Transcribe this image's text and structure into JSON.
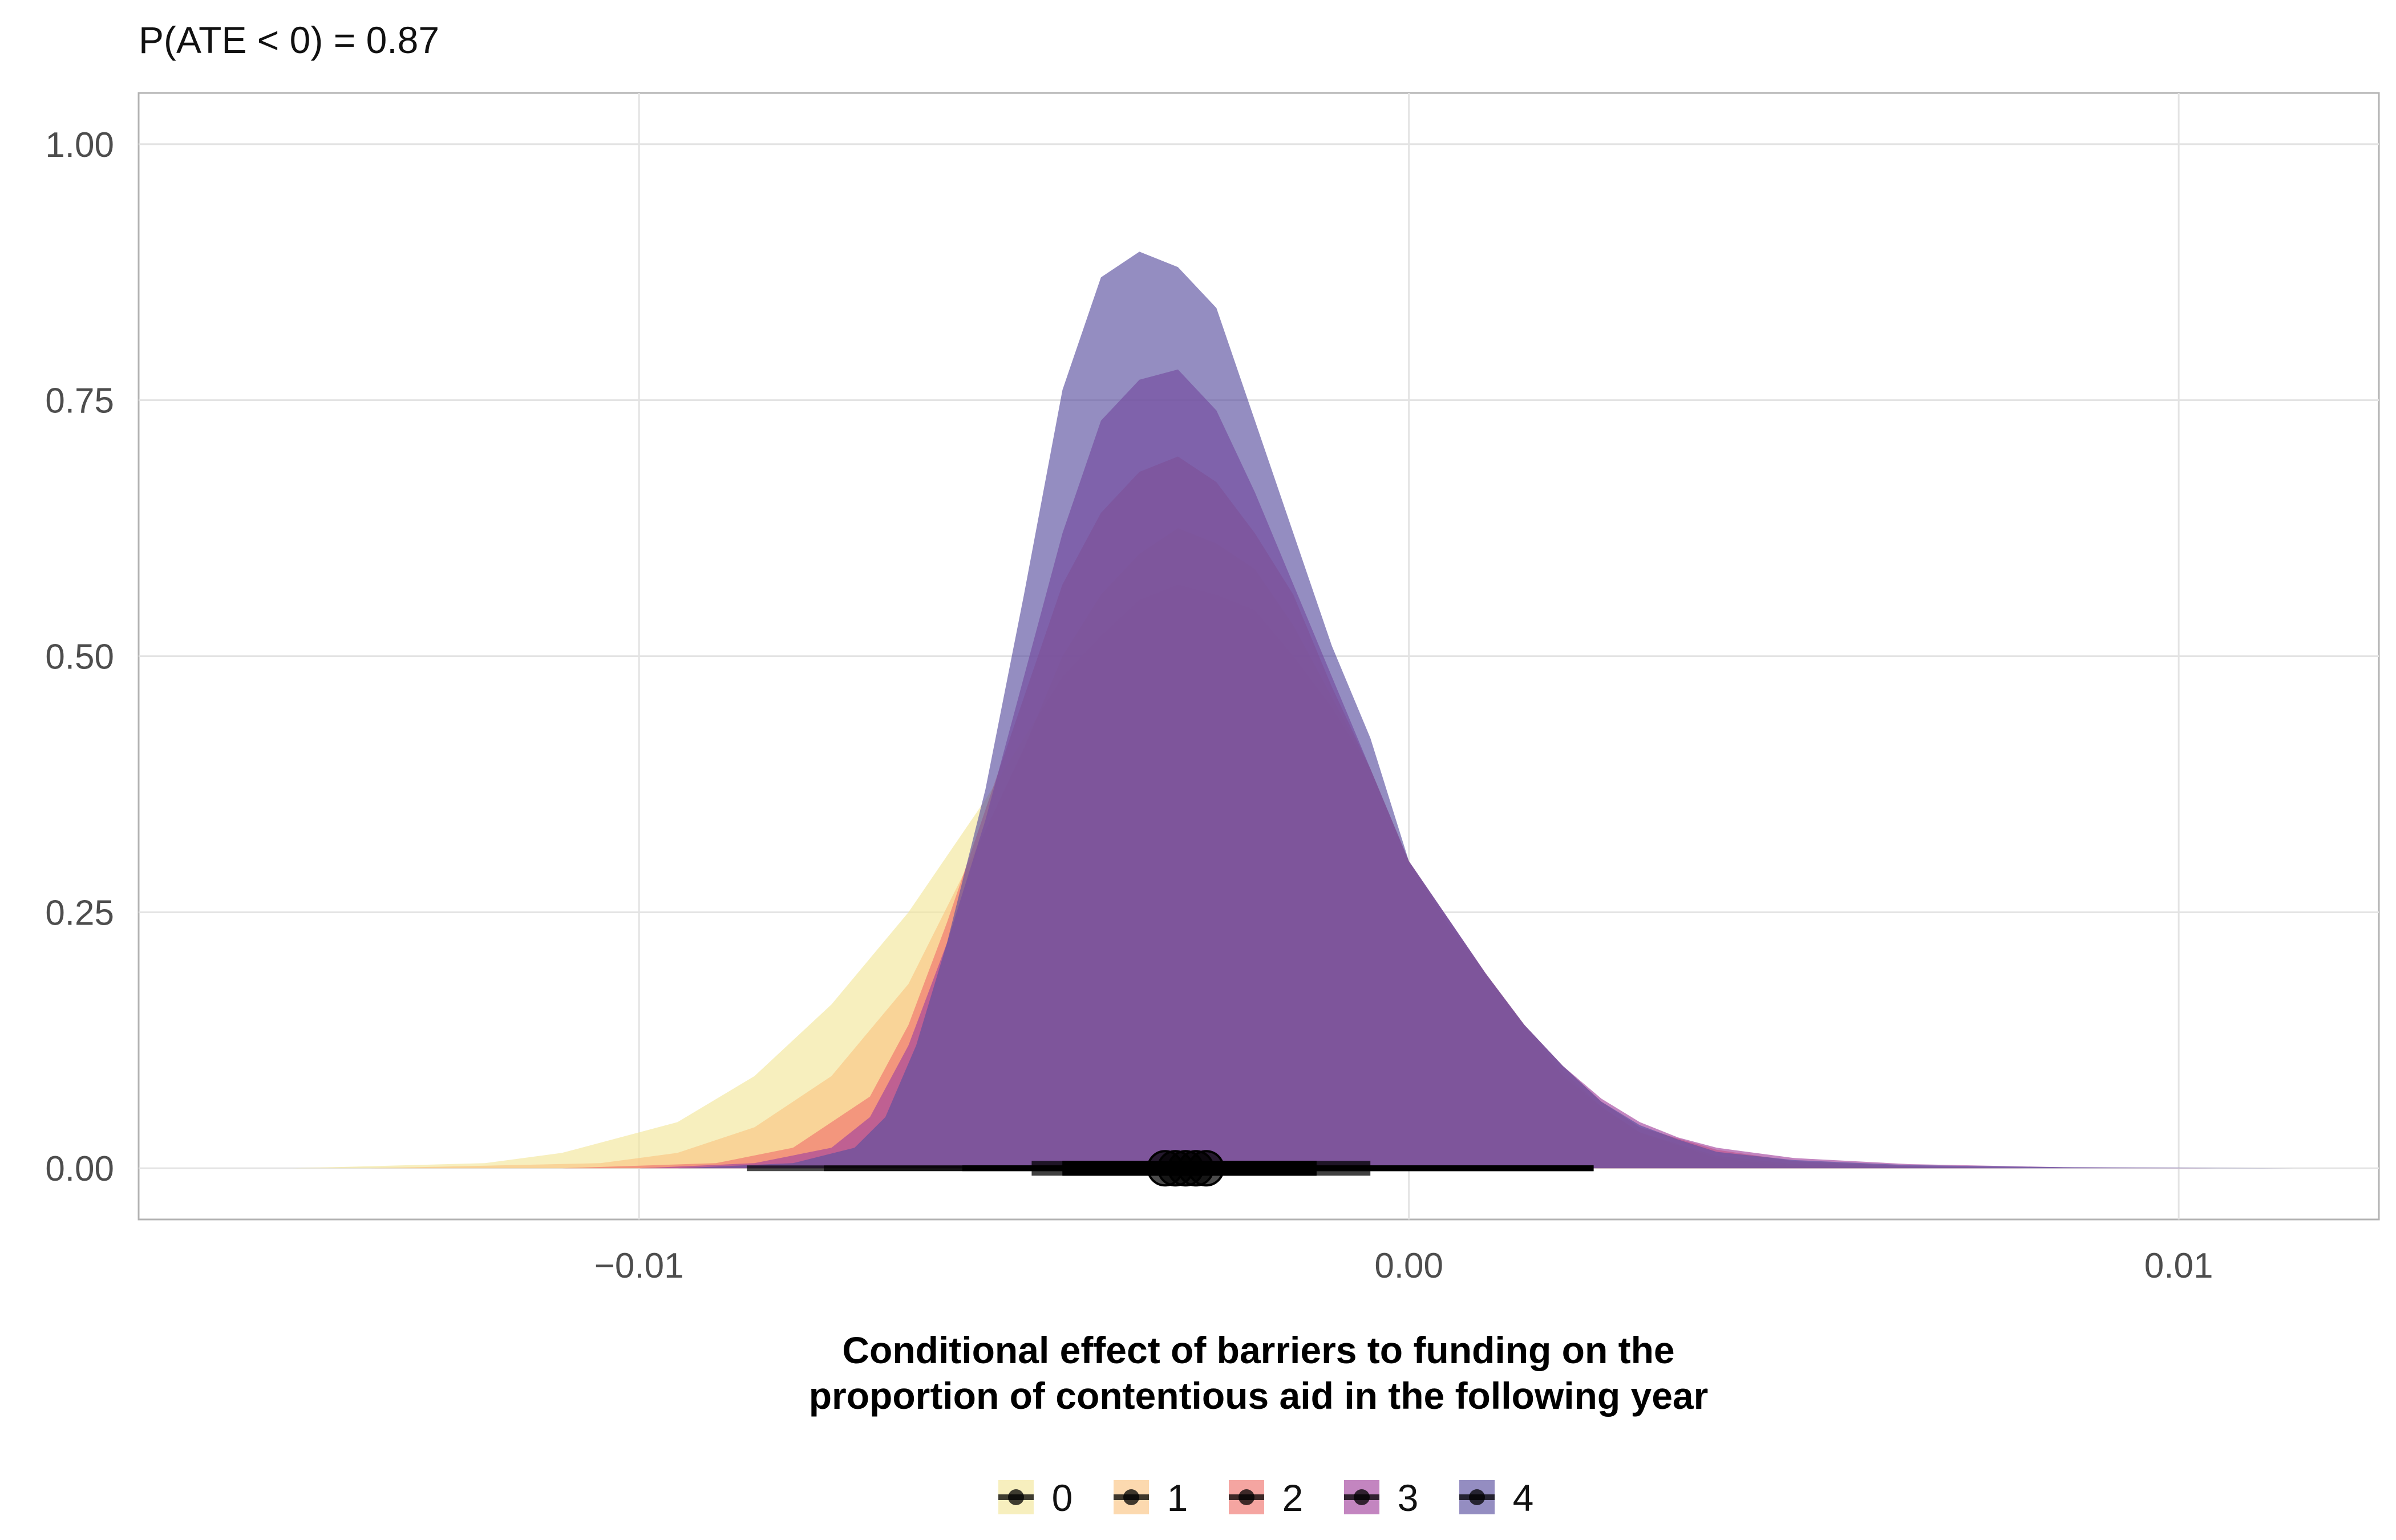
{
  "chart_data": {
    "type": "area",
    "subtype": "density-halfeye",
    "annotation": "P(ATE < 0) = 0.87",
    "xlabel_lines": [
      "Conditional effect of barriers to funding on the",
      "proportion of contentious aid in the following year"
    ],
    "ylabel": "",
    "xlim": [
      -0.0165,
      0.0126
    ],
    "ylim": [
      -0.05,
      1.05
    ],
    "x_ticks": [
      -0.01,
      0.0,
      0.01
    ],
    "x_tick_labels": [
      "−0.01",
      "0.00",
      "0.01"
    ],
    "y_ticks": [
      0,
      0.25,
      0.5,
      0.75,
      1.0
    ],
    "y_tick_labels": [
      "0.00",
      "0.25",
      "0.50",
      "0.75",
      "1.00"
    ],
    "grid": true,
    "legend_position": "bottom",
    "series": [
      {
        "name": "0",
        "color": "#f3e79b",
        "point": -0.0029,
        "interval_66": [
          -0.0045,
          -0.0012
        ],
        "interval_95": [
          -0.0086,
          0.0024
        ],
        "density": [
          [
            -0.0145,
            0.0
          ],
          [
            -0.012,
            0.005
          ],
          [
            -0.011,
            0.015
          ],
          [
            -0.0095,
            0.045
          ],
          [
            -0.0085,
            0.09
          ],
          [
            -0.0075,
            0.16
          ],
          [
            -0.0065,
            0.25
          ],
          [
            -0.0055,
            0.36
          ],
          [
            -0.005,
            0.42
          ],
          [
            -0.0045,
            0.48
          ],
          [
            -0.004,
            0.52
          ],
          [
            -0.0035,
            0.555
          ],
          [
            -0.003,
            0.57
          ],
          [
            -0.0025,
            0.56
          ],
          [
            -0.002,
            0.545
          ],
          [
            -0.0015,
            0.5
          ],
          [
            -0.001,
            0.45
          ],
          [
            -0.0005,
            0.39
          ],
          [
            0.0,
            0.3
          ],
          [
            0.0005,
            0.24
          ],
          [
            0.001,
            0.19
          ],
          [
            0.0015,
            0.14
          ],
          [
            0.002,
            0.09
          ],
          [
            0.0025,
            0.06
          ],
          [
            0.003,
            0.035
          ],
          [
            0.004,
            0.01
          ],
          [
            0.005,
            0.002
          ],
          [
            0.006,
            0.0
          ]
        ]
      },
      {
        "name": "1",
        "color": "#fac484",
        "point": -0.0029,
        "interval_66": [
          -0.0045,
          -0.0012
        ],
        "interval_95": [
          -0.0076,
          0.0024
        ],
        "density": [
          [
            -0.0135,
            0.0
          ],
          [
            -0.0105,
            0.005
          ],
          [
            -0.0095,
            0.015
          ],
          [
            -0.0085,
            0.04
          ],
          [
            -0.0075,
            0.09
          ],
          [
            -0.0065,
            0.18
          ],
          [
            -0.0055,
            0.33
          ],
          [
            -0.005,
            0.41
          ],
          [
            -0.0045,
            0.5
          ],
          [
            -0.004,
            0.56
          ],
          [
            -0.0035,
            0.6
          ],
          [
            -0.003,
            0.625
          ],
          [
            -0.0025,
            0.61
          ],
          [
            -0.002,
            0.585
          ],
          [
            -0.0015,
            0.53
          ],
          [
            -0.001,
            0.46
          ],
          [
            -0.0005,
            0.39
          ],
          [
            0.0,
            0.3
          ],
          [
            0.0005,
            0.24
          ],
          [
            0.001,
            0.19
          ],
          [
            0.0015,
            0.14
          ],
          [
            0.002,
            0.095
          ],
          [
            0.0025,
            0.06
          ],
          [
            0.003,
            0.035
          ],
          [
            0.004,
            0.012
          ],
          [
            0.005,
            0.004
          ],
          [
            0.0065,
            0.0
          ]
        ]
      },
      {
        "name": "2",
        "color": "#f0746e",
        "point": -0.0029,
        "interval_66": [
          -0.0045,
          -0.0012
        ],
        "interval_95": [
          -0.0058,
          0.0024
        ],
        "density": [
          [
            -0.011,
            0.0
          ],
          [
            -0.009,
            0.005
          ],
          [
            -0.008,
            0.02
          ],
          [
            -0.007,
            0.07
          ],
          [
            -0.0065,
            0.14
          ],
          [
            -0.006,
            0.24
          ],
          [
            -0.0055,
            0.35
          ],
          [
            -0.005,
            0.46
          ],
          [
            -0.0045,
            0.57
          ],
          [
            -0.004,
            0.64
          ],
          [
            -0.0035,
            0.68
          ],
          [
            -0.003,
            0.695
          ],
          [
            -0.0025,
            0.67
          ],
          [
            -0.002,
            0.62
          ],
          [
            -0.0015,
            0.56
          ],
          [
            -0.001,
            0.47
          ],
          [
            -0.0005,
            0.39
          ],
          [
            0.0,
            0.3
          ],
          [
            0.0005,
            0.245
          ],
          [
            0.001,
            0.19
          ],
          [
            0.0015,
            0.14
          ],
          [
            0.002,
            0.1
          ],
          [
            0.0025,
            0.065
          ],
          [
            0.003,
            0.04
          ],
          [
            0.004,
            0.018
          ],
          [
            0.005,
            0.007
          ],
          [
            0.0065,
            0.002
          ],
          [
            0.008,
            0.0
          ]
        ]
      },
      {
        "name": "3",
        "color": "#a3449e",
        "point": -0.0029,
        "interval_66": [
          -0.0045,
          -0.0012
        ],
        "interval_95": [
          -0.0058,
          0.0024
        ],
        "density": [
          [
            -0.01,
            0.0
          ],
          [
            -0.0085,
            0.005
          ],
          [
            -0.0075,
            0.02
          ],
          [
            -0.007,
            0.05
          ],
          [
            -0.0065,
            0.12
          ],
          [
            -0.006,
            0.22
          ],
          [
            -0.0055,
            0.34
          ],
          [
            -0.005,
            0.48
          ],
          [
            -0.0045,
            0.62
          ],
          [
            -0.004,
            0.73
          ],
          [
            -0.0035,
            0.77
          ],
          [
            -0.003,
            0.78
          ],
          [
            -0.0025,
            0.74
          ],
          [
            -0.002,
            0.66
          ],
          [
            -0.0015,
            0.57
          ],
          [
            -0.001,
            0.48
          ],
          [
            -0.0005,
            0.39
          ],
          [
            0.0,
            0.3
          ],
          [
            0.0005,
            0.245
          ],
          [
            0.001,
            0.19
          ],
          [
            0.0015,
            0.14
          ],
          [
            0.002,
            0.1
          ],
          [
            0.0025,
            0.068
          ],
          [
            0.003,
            0.045
          ],
          [
            0.0035,
            0.03
          ],
          [
            0.004,
            0.02
          ],
          [
            0.005,
            0.01
          ],
          [
            0.0065,
            0.004
          ],
          [
            0.0085,
            0.001
          ],
          [
            0.0105,
            0.0
          ]
        ]
      },
      {
        "name": "4",
        "color": "#5a509f",
        "point": -0.0029,
        "interval_66": [
          -0.0049,
          -0.0005
        ],
        "interval_95": [
          -0.0058,
          0.0024
        ],
        "density": [
          [
            -0.0095,
            0.0
          ],
          [
            -0.008,
            0.005
          ],
          [
            -0.0072,
            0.02
          ],
          [
            -0.0068,
            0.05
          ],
          [
            -0.0064,
            0.12
          ],
          [
            -0.006,
            0.22
          ],
          [
            -0.0055,
            0.37
          ],
          [
            -0.005,
            0.56
          ],
          [
            -0.0045,
            0.76
          ],
          [
            -0.004,
            0.87
          ],
          [
            -0.0035,
            0.895
          ],
          [
            -0.003,
            0.88
          ],
          [
            -0.0025,
            0.84
          ],
          [
            -0.002,
            0.73
          ],
          [
            -0.0015,
            0.62
          ],
          [
            -0.001,
            0.51
          ],
          [
            -0.0005,
            0.42
          ],
          [
            0.0,
            0.3
          ],
          [
            0.0005,
            0.245
          ],
          [
            0.001,
            0.19
          ],
          [
            0.0015,
            0.14
          ],
          [
            0.002,
            0.1
          ],
          [
            0.0025,
            0.065
          ],
          [
            0.003,
            0.042
          ],
          [
            0.0035,
            0.028
          ],
          [
            0.004,
            0.016
          ],
          [
            0.005,
            0.008
          ],
          [
            0.0065,
            0.003
          ],
          [
            0.0085,
            0.001
          ],
          [
            0.0115,
            0.0
          ]
        ]
      }
    ]
  }
}
